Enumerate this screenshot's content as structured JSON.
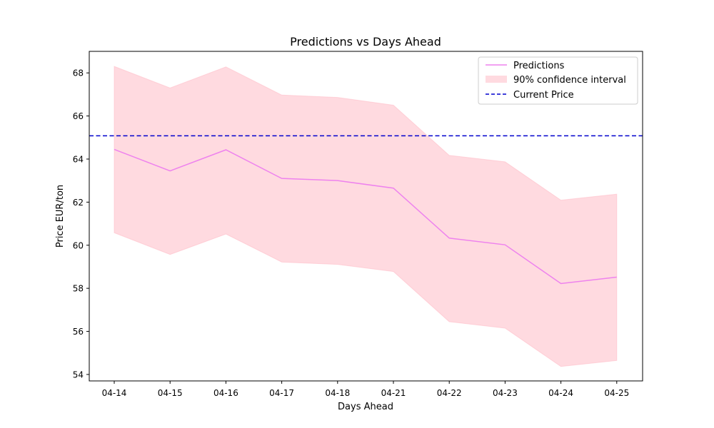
{
  "chart_data": {
    "type": "line",
    "title": "Predictions vs Days Ahead",
    "xlabel": "Days Ahead",
    "ylabel": "Price EUR/ton",
    "categories": [
      "04-14",
      "04-15",
      "04-16",
      "04-17",
      "04-18",
      "04-21",
      "04-22",
      "04-23",
      "04-24",
      "04-25"
    ],
    "ylim": [
      53.7,
      69.0
    ],
    "yticks": [
      54,
      56,
      58,
      60,
      62,
      64,
      66,
      68
    ],
    "series": [
      {
        "name": "Predictions",
        "values": [
          64.45,
          63.45,
          64.43,
          63.1,
          63.0,
          62.65,
          60.33,
          60.02,
          58.22,
          58.52
        ],
        "color": "#ee82ee"
      }
    ],
    "confidence_interval": {
      "name": "90% confidence interval",
      "lower": [
        60.58,
        59.57,
        60.52,
        59.22,
        59.11,
        58.78,
        56.45,
        56.15,
        54.37,
        54.65
      ],
      "upper": [
        68.3,
        67.3,
        68.28,
        66.97,
        66.86,
        66.5,
        64.17,
        63.87,
        62.09,
        62.37
      ],
      "color": "#ffb6c1"
    },
    "reference_line": {
      "name": "Current Price",
      "value": 65.08,
      "color": "#0000cd",
      "style": "dashed"
    },
    "legend": {
      "placement": "top-right",
      "entries": [
        "Predictions",
        "90% confidence interval",
        "Current Price"
      ]
    },
    "grid": false
  }
}
